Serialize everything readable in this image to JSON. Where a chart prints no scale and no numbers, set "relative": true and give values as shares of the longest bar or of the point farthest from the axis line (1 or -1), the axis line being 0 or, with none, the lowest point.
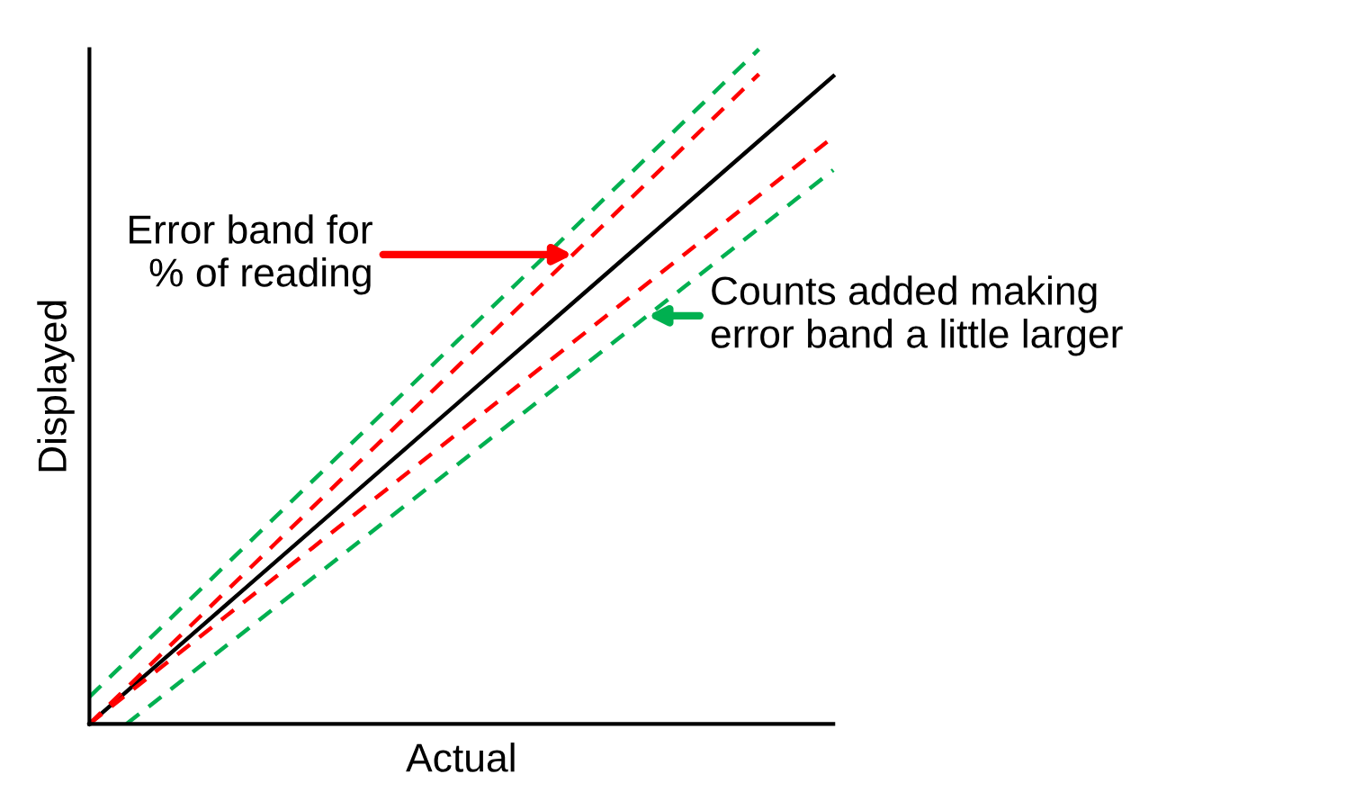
{
  "chart_data": {
    "type": "line",
    "relative": true,
    "xlabel": "Actual",
    "ylabel": "Displayed",
    "categories": [
      null,
      null,
      null,
      null,
      null,
      null,
      null,
      null,
      null,
      null,
      null,
      null,
      null,
      null,
      null,
      null,
      null,
      null,
      null,
      null,
      null
    ],
    "series": [
      {
        "color": "#000000",
        "line_style": "solid",
        "values": [
          0,
          0.048,
          0.096,
          0.144,
          0.192,
          0.24,
          0.288,
          0.336,
          0.384,
          0.432,
          0.48,
          0.528,
          0.576,
          0.624,
          0.672,
          0.72,
          0.768,
          0.816,
          0.864,
          0.912,
          0.96
        ]
      },
      {
        "color": "#ff0000",
        "line_style": "dashed",
        "values": [
          0,
          0.0535,
          0.107,
          0.1605,
          0.214,
          0.2675,
          0.321,
          0.3745,
          0.428,
          0.4815,
          0.535,
          0.5885,
          0.642,
          0.6955,
          0.749,
          0.8025,
          0.856,
          0.9095,
          0.963,
          null,
          null
        ]
      },
      {
        "color": "#00b050",
        "line_style": "dashed",
        "values": [
          0.04,
          0.0933,
          0.1467,
          0.2,
          0.2533,
          0.3067,
          0.36,
          0.4133,
          0.4667,
          0.52,
          0.5733,
          0.6267,
          0.68,
          0.7333,
          0.7867,
          0.84,
          0.8933,
          0.9467,
          1,
          null,
          null
        ]
      },
      {
        "color": "#ff0000",
        "line_style": "dashed",
        "values": [
          0,
          0.0435,
          0.087,
          0.1305,
          0.174,
          0.2175,
          0.261,
          0.3045,
          0.348,
          0.3915,
          0.435,
          0.4785,
          0.522,
          0.5655,
          0.609,
          0.6525,
          0.696,
          0.7395,
          0.783,
          0.8265,
          0.87
        ]
      },
      {
        "color": "#00b050",
        "line_style": "dashed",
        "values": [
          null,
          0,
          0.0432,
          0.0864,
          0.1296,
          0.1728,
          0.216,
          0.2592,
          0.3024,
          0.3456,
          0.3888,
          0.432,
          0.4752,
          0.5184,
          0.5616,
          0.6048,
          0.648,
          0.6912,
          0.7344,
          0.7776,
          0.8208
        ]
      }
    ],
    "annotations": [
      "Error band for\n% of reading",
      "Counts added making\nerror band a little larger"
    ]
  }
}
